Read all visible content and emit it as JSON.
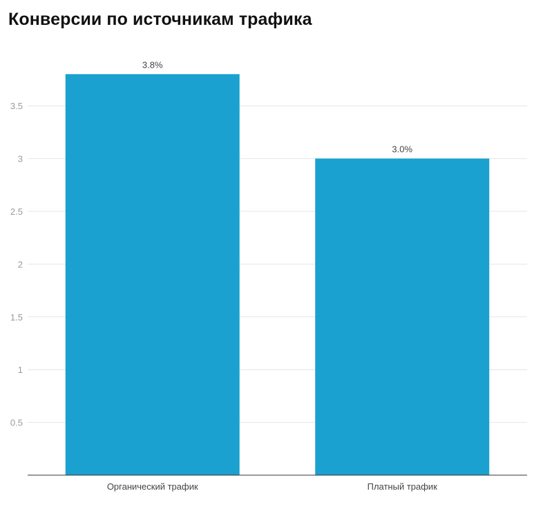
{
  "title": "Конверсии по источникам трафика",
  "colors": {
    "bar": "#1aa1cf",
    "grid": "#e4e4e4",
    "axis": "#333333"
  },
  "chart_data": {
    "type": "bar",
    "title": "Конверсии по источникам трафика",
    "categories": [
      "Органический трафик",
      "Платный трафик"
    ],
    "values": [
      3.8,
      3.0
    ],
    "data_labels": [
      "3.8%",
      "3.0%"
    ],
    "yticks": [
      0.5,
      1,
      1.5,
      2,
      2.5,
      3,
      3.5
    ],
    "ytick_labels": [
      "0.5",
      "1",
      "1.5",
      "2",
      "2.5",
      "3",
      "3.5"
    ],
    "ylim": [
      0,
      4.1
    ],
    "xlabel": "",
    "ylabel": "",
    "grid": true,
    "legend": "none"
  }
}
